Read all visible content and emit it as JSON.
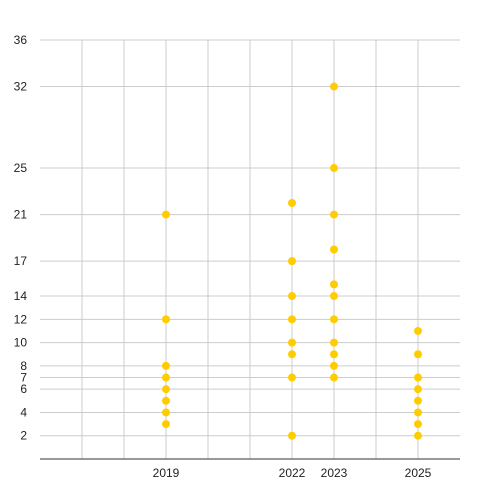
{
  "chart_data": {
    "type": "scatter",
    "title": "",
    "xlabel": "",
    "ylabel": "",
    "grid": true,
    "legend": "none",
    "color": "#FFCC00",
    "x_ticks": [
      2019,
      2022,
      2023,
      2025
    ],
    "y_ticks": [
      2,
      4,
      6,
      7,
      8,
      10,
      12,
      14,
      17,
      21,
      25,
      32,
      36
    ],
    "xlim": [
      2016,
      2026
    ],
    "ylim": [
      0,
      36
    ],
    "points": [
      {
        "x": 2019,
        "y": 21
      },
      {
        "x": 2019,
        "y": 12
      },
      {
        "x": 2019,
        "y": 8
      },
      {
        "x": 2019,
        "y": 7
      },
      {
        "x": 2019,
        "y": 6
      },
      {
        "x": 2019,
        "y": 5
      },
      {
        "x": 2019,
        "y": 4
      },
      {
        "x": 2019,
        "y": 3
      },
      {
        "x": 2022,
        "y": 22
      },
      {
        "x": 2022,
        "y": 17
      },
      {
        "x": 2022,
        "y": 14
      },
      {
        "x": 2022,
        "y": 12
      },
      {
        "x": 2022,
        "y": 10
      },
      {
        "x": 2022,
        "y": 9
      },
      {
        "x": 2022,
        "y": 7
      },
      {
        "x": 2022,
        "y": 2
      },
      {
        "x": 2023,
        "y": 32
      },
      {
        "x": 2023,
        "y": 25
      },
      {
        "x": 2023,
        "y": 21
      },
      {
        "x": 2023,
        "y": 18
      },
      {
        "x": 2023,
        "y": 15
      },
      {
        "x": 2023,
        "y": 14
      },
      {
        "x": 2023,
        "y": 12
      },
      {
        "x": 2023,
        "y": 10
      },
      {
        "x": 2023,
        "y": 9
      },
      {
        "x": 2023,
        "y": 8
      },
      {
        "x": 2023,
        "y": 7
      },
      {
        "x": 2025,
        "y": 11
      },
      {
        "x": 2025,
        "y": 9
      },
      {
        "x": 2025,
        "y": 7
      },
      {
        "x": 2025,
        "y": 6
      },
      {
        "x": 2025,
        "y": 5
      },
      {
        "x": 2025,
        "y": 4
      },
      {
        "x": 2025,
        "y": 3
      },
      {
        "x": 2025,
        "y": 2
      }
    ]
  }
}
